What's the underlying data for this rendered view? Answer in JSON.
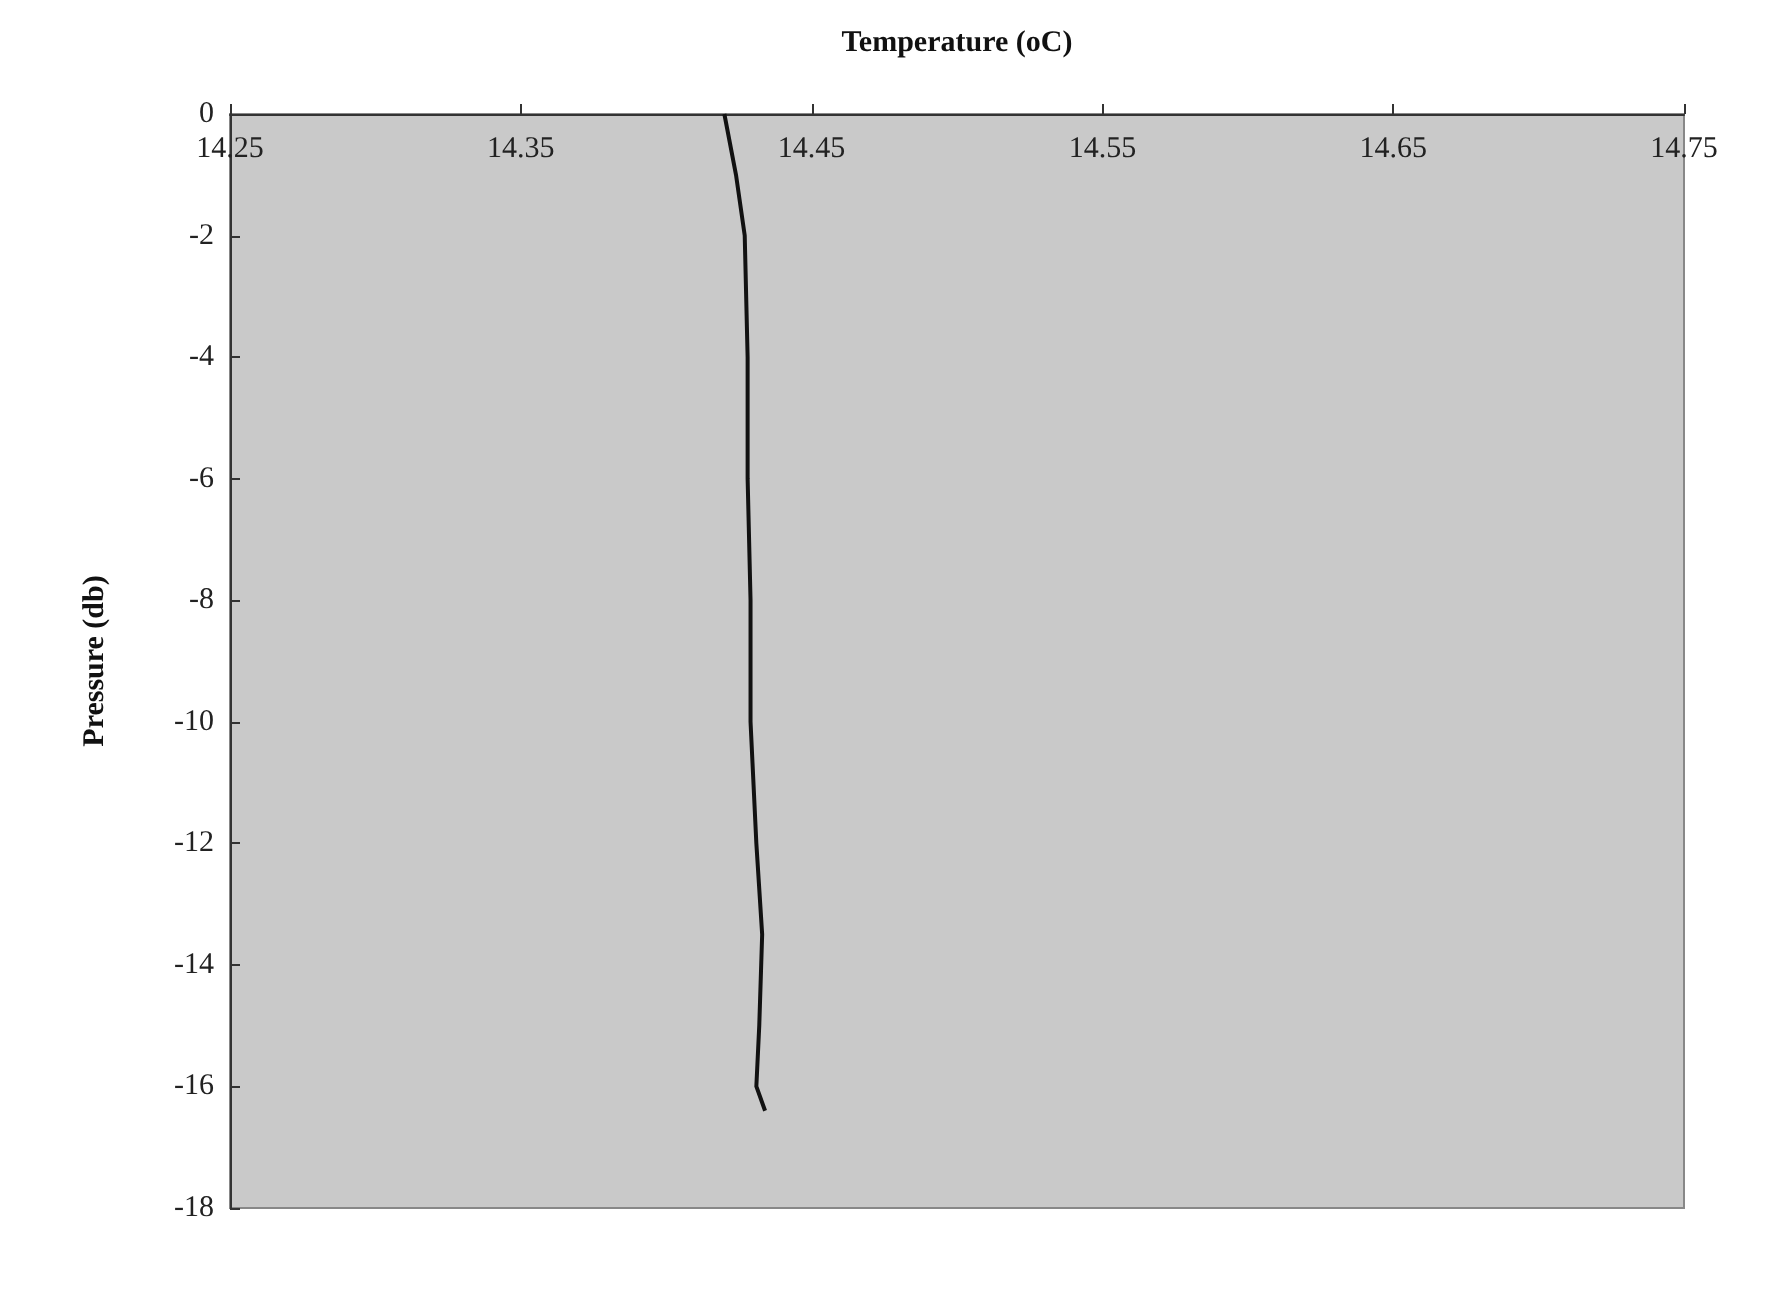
{
  "chart_data": {
    "type": "line",
    "xlabel": "Temperature (oC)",
    "ylabel": "Pressure (db)",
    "xlim": [
      14.25,
      14.75
    ],
    "xticks": [
      14.25,
      14.35,
      14.45,
      14.55,
      14.65,
      14.75
    ],
    "ylim": [
      -18,
      0
    ],
    "yticks": [
      0,
      -2,
      -4,
      -6,
      -8,
      -10,
      -12,
      -14,
      -16,
      -18
    ],
    "grid": false,
    "marker": "none",
    "line_style": "solid",
    "series": [
      {
        "color": "#111111",
        "x": [
          14.42,
          14.424,
          14.427,
          14.428,
          14.428,
          14.429,
          14.429,
          14.431,
          14.433,
          14.432,
          14.431,
          14.434
        ],
        "values": [
          0,
          -1,
          -2,
          -4,
          -6,
          -8,
          -10,
          -12,
          -13.5,
          -15,
          -16,
          -16.4
        ]
      }
    ]
  }
}
